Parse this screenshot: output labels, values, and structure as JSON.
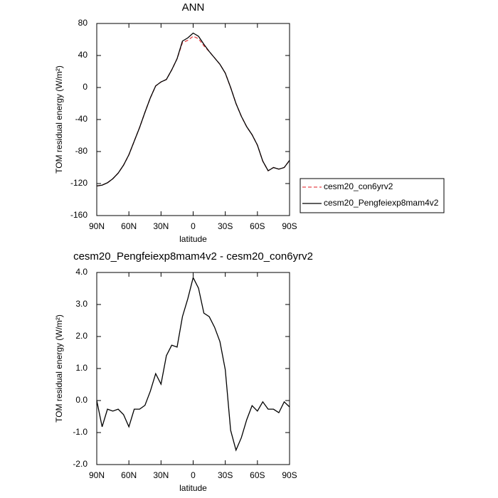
{
  "chart_data": [
    {
      "type": "line",
      "title": "ANN",
      "xlabel": "latitude",
      "ylabel": "TOM residual energy (W/m²)",
      "x": [
        90,
        85,
        80,
        75,
        70,
        65,
        60,
        55,
        50,
        45,
        40,
        35,
        30,
        25,
        20,
        15,
        10,
        5,
        0,
        -5,
        -10,
        -15,
        -20,
        -25,
        -30,
        -35,
        -40,
        -45,
        -50,
        -55,
        -60,
        -65,
        -70,
        -75,
        -80,
        -85,
        -90
      ],
      "series": [
        {
          "name": "cesm20_con6yrv2",
          "color": "#e8474c",
          "line_style": "dashed",
          "values": [
            -123,
            -122,
            -119,
            -114,
            -107,
            -97,
            -84,
            -67,
            -50,
            -31,
            -13,
            2,
            7,
            10,
            22,
            36,
            56,
            59,
            64,
            61,
            52,
            45,
            37,
            29,
            18,
            0,
            -20,
            -36,
            -49,
            -59,
            -72,
            -92,
            -104,
            -100,
            -102,
            -100,
            -91
          ]
        },
        {
          "name": "cesm20_Pengfeiexp8mam4v2",
          "color": "#000000",
          "line_style": "solid",
          "values": [
            -123,
            -122,
            -119,
            -114,
            -107,
            -97,
            -84,
            -67,
            -50,
            -31,
            -13,
            2,
            7,
            10,
            22,
            36,
            58,
            62,
            68,
            64,
            54,
            45,
            37,
            29,
            18,
            0,
            -20,
            -36,
            -49,
            -59,
            -72,
            -92,
            -104,
            -100,
            -102,
            -100,
            -91
          ]
        }
      ],
      "xlim": [
        90,
        -90
      ],
      "xticks": [
        {
          "value": 90,
          "label": "90N"
        },
        {
          "value": 60,
          "label": "60N"
        },
        {
          "value": 30,
          "label": "30N"
        },
        0,
        {
          "value": -30,
          "label": "30S"
        },
        {
          "value": -60,
          "label": "60S"
        },
        {
          "value": -90,
          "label": "90S"
        }
      ],
      "ylim": [
        -160,
        80
      ],
      "yticks": [
        -160,
        -120,
        -80,
        -40,
        0,
        40,
        80
      ],
      "legend": "right"
    },
    {
      "type": "line",
      "title": "cesm20_Pengfeiexp8mam4v2 - cesm20_con6yrv2",
      "xlabel": "latitude",
      "ylabel": "TOM residual energy (W/m²)",
      "x": [
        90,
        85,
        80,
        75,
        70,
        65,
        60,
        55,
        50,
        45,
        40,
        35,
        30,
        25,
        20,
        15,
        10,
        5,
        0,
        -5,
        -10,
        -15,
        -20,
        -25,
        -30,
        -35,
        -40,
        -45,
        -50,
        -55,
        -60,
        -65,
        -70,
        -75,
        -80,
        -85,
        -90
      ],
      "series": [
        {
          "color": "#000000",
          "line_style": "solid",
          "values": [
            0,
            -0.82,
            -0.27,
            -0.33,
            -0.27,
            -0.44,
            -0.82,
            -0.27,
            -0.27,
            -0.15,
            0.29,
            0.84,
            0.51,
            1.4,
            1.73,
            1.67,
            2.62,
            3.18,
            3.84,
            3.51,
            2.73,
            2.62,
            2.29,
            1.84,
            0.96,
            -0.93,
            -1.55,
            -1.16,
            -0.6,
            -0.16,
            -0.33,
            -0.04,
            -0.27,
            -0.27,
            -0.38,
            -0.04,
            -0.2
          ]
        }
      ],
      "xlim": [
        90,
        -90
      ],
      "xticks": [
        {
          "value": 90,
          "label": "90N"
        },
        {
          "value": 60,
          "label": "60N"
        },
        {
          "value": 30,
          "label": "30N"
        },
        0,
        {
          "value": -30,
          "label": "30S"
        },
        {
          "value": -60,
          "label": "60S"
        },
        {
          "value": -90,
          "label": "90S"
        }
      ],
      "ylim": [
        -2,
        4
      ],
      "yticks": [
        {
          "value": -2,
          "label": "-2.0"
        },
        {
          "value": -1,
          "label": "-1.0"
        },
        {
          "value": 0,
          "label": "0.0"
        },
        {
          "value": 1,
          "label": "1.0"
        },
        {
          "value": 2,
          "label": "2.0"
        },
        {
          "value": 3,
          "label": "3.0"
        },
        {
          "value": 4,
          "label": "4.0"
        }
      ]
    }
  ]
}
